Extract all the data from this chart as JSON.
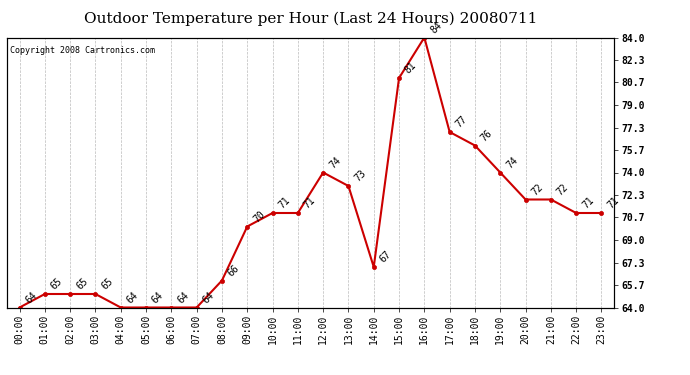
{
  "title": "Outdoor Temperature per Hour (Last 24 Hours) 20080711",
  "copyright": "Copyright 2008 Cartronics.com",
  "hours": [
    "00:00",
    "01:00",
    "02:00",
    "03:00",
    "04:00",
    "05:00",
    "06:00",
    "07:00",
    "08:00",
    "09:00",
    "10:00",
    "11:00",
    "12:00",
    "13:00",
    "14:00",
    "15:00",
    "16:00",
    "17:00",
    "18:00",
    "19:00",
    "20:00",
    "21:00",
    "22:00",
    "23:00"
  ],
  "temps": [
    64,
    65,
    65,
    65,
    64,
    64,
    64,
    64,
    66,
    70,
    71,
    71,
    74,
    73,
    67,
    81,
    84,
    77,
    76,
    74,
    72,
    72,
    71,
    71
  ],
  "ylim": [
    64.0,
    84.0
  ],
  "yticks_right": [
    64.0,
    65.7,
    67.3,
    69.0,
    70.7,
    72.3,
    74.0,
    75.7,
    77.3,
    79.0,
    80.7,
    82.3,
    84.0
  ],
  "line_color": "#cc0000",
  "bg_color": "#ffffff",
  "grid_color": "#bbbbbb",
  "title_fontsize": 11,
  "tick_fontsize": 7,
  "annot_fontsize": 7,
  "copyright_fontsize": 6
}
